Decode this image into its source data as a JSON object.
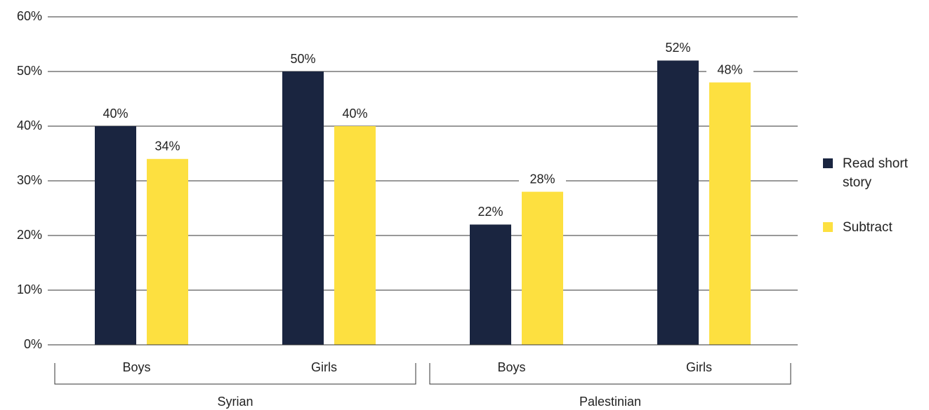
{
  "chart_data": {
    "type": "bar",
    "categories": [
      "Boys",
      "Girls",
      "Boys",
      "Girls"
    ],
    "groups": [
      "Syrian",
      "Palestinian"
    ],
    "series": [
      {
        "name": "Read short story",
        "color": "#1a2540",
        "values": [
          40,
          50,
          22,
          52
        ],
        "value_labels": [
          "40%",
          "50%",
          "22%",
          "52%"
        ]
      },
      {
        "name": "Subtract",
        "color": "#fde040",
        "values": [
          34,
          40,
          28,
          48
        ],
        "value_labels": [
          "34%",
          "40%",
          "28%",
          "48%"
        ]
      }
    ],
    "ylim": [
      0,
      60
    ],
    "yticks": [
      {
        "value": 0,
        "label": "0%"
      },
      {
        "value": 10,
        "label": "10%"
      },
      {
        "value": 20,
        "label": "20%"
      },
      {
        "value": 30,
        "label": "30%"
      },
      {
        "value": 40,
        "label": "40%"
      },
      {
        "value": 50,
        "label": "50%"
      },
      {
        "value": 60,
        "label": "60%"
      }
    ],
    "grid": true,
    "legend": "right"
  }
}
